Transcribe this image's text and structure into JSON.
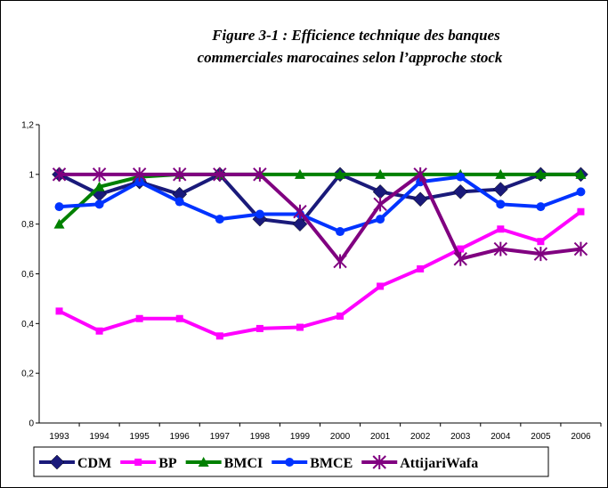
{
  "chart_data": {
    "type": "line",
    "title": [
      "Figure 3-1 : Efficience technique des banques",
      "commerciales marocaines selon l’approche stock"
    ],
    "categories": [
      "1993",
      "1994",
      "1995",
      "1996",
      "1997",
      "1998",
      "1999",
      "2000",
      "2001",
      "2002",
      "2003",
      "2004",
      "2005",
      "2006"
    ],
    "ylim": [
      0,
      1.2
    ],
    "yticks": [
      0,
      {
        "value": 0.2,
        "label": "0,2"
      },
      {
        "value": 0.4,
        "label": "0,4"
      },
      {
        "value": 0.6,
        "label": "0,6"
      },
      {
        "value": 0.8,
        "label": "0,8"
      },
      1,
      {
        "value": 1.2,
        "label": "1,2"
      }
    ],
    "series": [
      {
        "name": "CDM",
        "color": "#1a1a7a",
        "marker": "diamond",
        "values": [
          1,
          0.92,
          0.97,
          0.92,
          1,
          0.82,
          0.8,
          1,
          0.93,
          0.9,
          0.93,
          0.94,
          1,
          1
        ]
      },
      {
        "name": "BP",
        "color": "#ff00ff",
        "marker": "square",
        "values": [
          0.45,
          0.37,
          0.42,
          0.42,
          0.35,
          0.38,
          0.385,
          0.43,
          0.55,
          0.62,
          0.7,
          0.78,
          0.73,
          0.85
        ]
      },
      {
        "name": "BMCI",
        "color": "#008000",
        "marker": "triangle",
        "values": [
          0.8,
          0.95,
          0.99,
          1,
          1,
          1,
          1,
          1,
          1,
          1,
          1,
          1,
          1,
          1
        ]
      },
      {
        "name": "BMCE",
        "color": "#0033ff",
        "marker": "circle",
        "values": [
          0.87,
          0.88,
          0.97,
          0.89,
          0.82,
          0.84,
          0.84,
          0.77,
          0.82,
          0.97,
          0.99,
          0.88,
          0.87,
          0.93
        ]
      },
      {
        "name": "AttijariWafa",
        "color": "#800080",
        "marker": "star",
        "values": [
          1,
          1,
          1,
          1,
          1,
          1,
          0.85,
          0.65,
          0.88,
          1,
          0.66,
          0.7,
          0.68,
          0.7
        ]
      }
    ]
  }
}
